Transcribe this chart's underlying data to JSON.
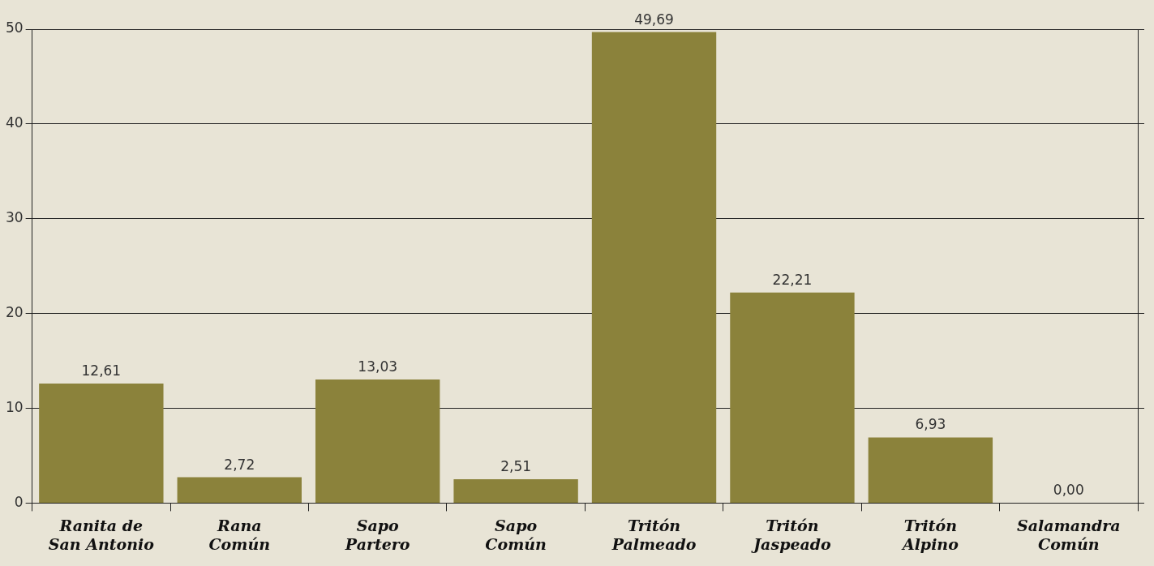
{
  "chart_data": {
    "type": "bar",
    "categories": [
      "Ranita de San Antonio",
      "Rana Común",
      "Sapo Partero",
      "Sapo Común",
      "Tritón Palmeado",
      "Tritón Jaspeado",
      "Tritón Alpino",
      "Salamandra Común"
    ],
    "values": [
      12.61,
      2.72,
      13.03,
      2.51,
      49.69,
      22.21,
      6.93,
      0.0
    ],
    "value_labels": [
      "12,61",
      "2,72",
      "13,03",
      "2,51",
      "49,69",
      "22,21",
      "6,93",
      "0,00"
    ],
    "color": "#8b823b",
    "ylim": [
      0,
      50
    ],
    "yticks": [
      0,
      10,
      20,
      30,
      40,
      50
    ],
    "grid": "y",
    "legend": false
  }
}
